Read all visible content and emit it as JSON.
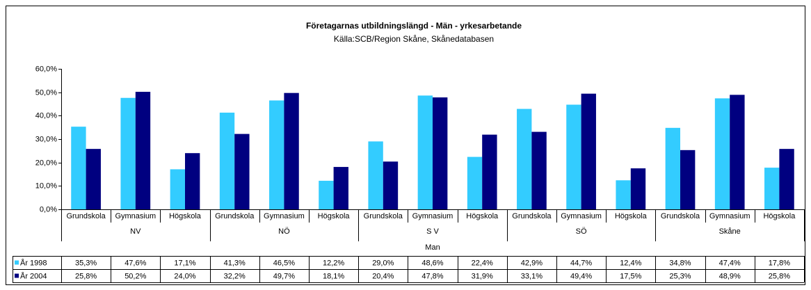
{
  "chart_data": {
    "type": "bar",
    "title": "Företagarnas utbildningslängd - Män - yrkesarbetande",
    "subtitle": "Källa:SCB/Region Skåne, Skånedatabasen",
    "categories": [
      "Grundskola",
      "Gymnasium",
      "Högskola",
      "Grundskola",
      "Gymnasium",
      "Högskola",
      "Grundskola",
      "Gymnasium",
      "Högskola",
      "Grundskola",
      "Gymnasium",
      "Högskola",
      "Grundskola",
      "Gymnasium",
      "Högskola"
    ],
    "regions": [
      "NV",
      "NÖ",
      "S V",
      "SÖ",
      "Skåne"
    ],
    "group_label": "Man",
    "series": [
      {
        "name": "År 1998",
        "color": "#33ccff",
        "values": [
          35.3,
          47.6,
          17.1,
          41.3,
          46.5,
          12.2,
          29.0,
          48.6,
          22.4,
          42.9,
          44.7,
          12.4,
          34.8,
          47.4,
          17.8
        ],
        "value_labels": [
          "35,3%",
          "47,6%",
          "17,1%",
          "41,3%",
          "46,5%",
          "12,2%",
          "29,0%",
          "48,6%",
          "22,4%",
          "42,9%",
          "44,7%",
          "12,4%",
          "34,8%",
          "47,4%",
          "17,8%"
        ]
      },
      {
        "name": "År 2004",
        "color": "#000080",
        "values": [
          25.8,
          50.2,
          24.0,
          32.2,
          49.7,
          18.1,
          20.4,
          47.8,
          31.9,
          33.1,
          49.4,
          17.5,
          25.3,
          48.9,
          25.8
        ],
        "value_labels": [
          "25,8%",
          "50,2%",
          "24,0%",
          "32,2%",
          "49,7%",
          "18,1%",
          "20,4%",
          "47,8%",
          "31,9%",
          "33,1%",
          "49,4%",
          "17,5%",
          "25,3%",
          "48,9%",
          "25,8%"
        ]
      }
    ],
    "ylim": [
      0,
      60
    ],
    "yticks": [
      {
        "value": 0,
        "label": "0,0%"
      },
      {
        "value": 10,
        "label": "10,0%"
      },
      {
        "value": 20,
        "label": "20,0%"
      },
      {
        "value": 30,
        "label": "30,0%"
      },
      {
        "value": 40,
        "label": "40,0%"
      },
      {
        "value": 50,
        "label": "50,0%"
      },
      {
        "value": 60,
        "label": "60,0%"
      }
    ],
    "grid": false
  }
}
